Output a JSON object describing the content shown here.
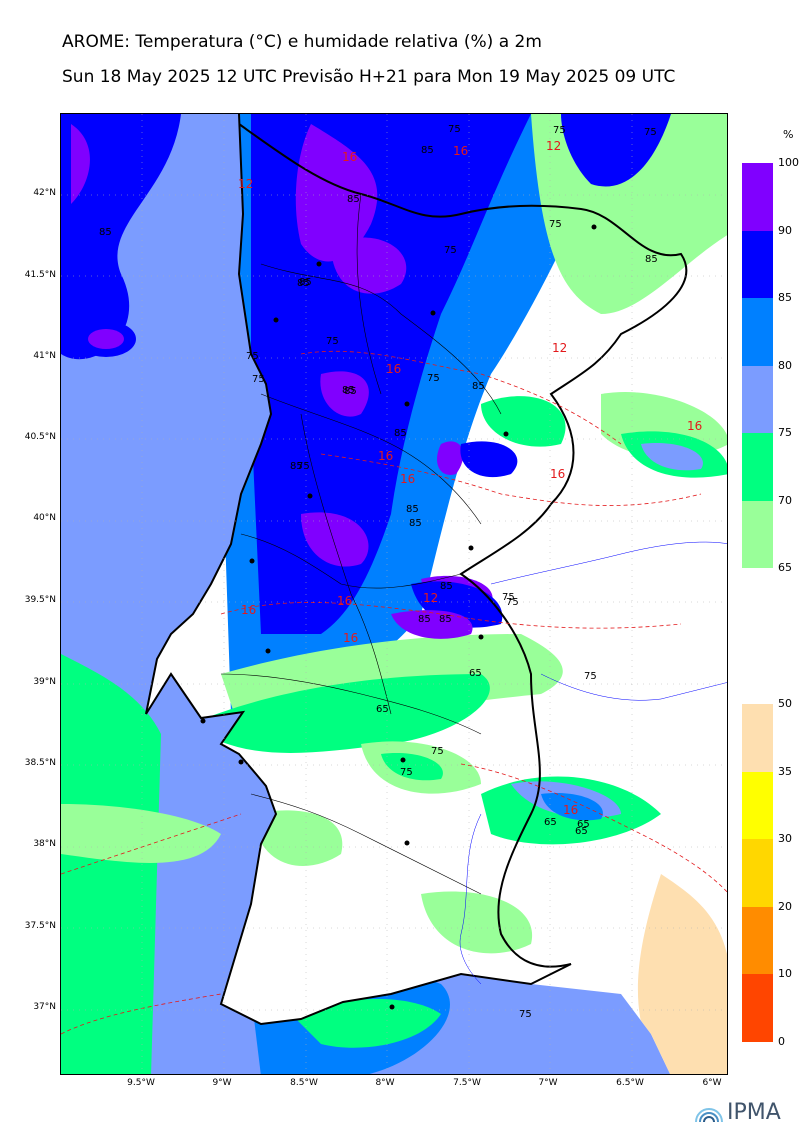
{
  "title_line1": "AROME: Temperatura (°C) e humidade relativa (%) a 2m",
  "title_line2": "Sun 18 May 2025 12 UTC Previsão H+21 para Mon 19 May 2025 09 UTC",
  "map": {
    "lat_ticks": [
      "42°N",
      "41.5°N",
      "41°N",
      "40.5°N",
      "40°N",
      "39.5°N",
      "39°N",
      "38.5°N",
      "38°N",
      "37.5°N",
      "37°N"
    ],
    "lon_ticks": [
      "9.5°W",
      "9°W",
      "8.5°W",
      "8°W",
      "7.5°W",
      "7°W",
      "6.5°W",
      "6°W"
    ],
    "contour_labels_rh": [
      "75",
      "75",
      "75",
      "85",
      "85",
      "75",
      "85",
      "85",
      "75",
      "85",
      "75",
      "75",
      "75",
      "85",
      "75",
      "85",
      "85",
      "85",
      "85",
      "85",
      "85",
      "85",
      "75",
      "75",
      "85",
      "85",
      "65",
      "65",
      "75",
      "75",
      "75",
      "65",
      "65",
      "75",
      "65",
      "75",
      "85"
    ],
    "contour_labels_temp": [
      "16",
      "16",
      "12",
      "12",
      "12",
      "16",
      "16",
      "16",
      "16",
      "16",
      "16",
      "12",
      "16",
      "16",
      "16"
    ],
    "colors": {
      "sea": "#7b9cff",
      "rh65": "#99ff99",
      "rh70": "#00ff80",
      "rh75": "#7b9cff",
      "rh80": "#0080ff",
      "rh85": "#0000ff",
      "rh90": "#8000ff",
      "temp_contour": "#e31a1c",
      "border": "#000000"
    }
  },
  "colorbar_rh": {
    "unit": "%",
    "ticks": [
      "100",
      "90",
      "85",
      "80",
      "75",
      "70",
      "65"
    ],
    "colors": [
      "#8000ff",
      "#0000ff",
      "#0080ff",
      "#7b9cff",
      "#00ff80",
      "#99ff99"
    ]
  },
  "colorbar_t": {
    "ticks": [
      "50",
      "35",
      "30",
      "20",
      "10",
      "0"
    ],
    "colors": [
      "#fedfb0",
      "#ffff00",
      "#ffd700",
      "#ff8c00",
      "#ff4500"
    ]
  },
  "logo": {
    "text": "IPMA",
    "icon": "ipma-rainbow-icon"
  }
}
